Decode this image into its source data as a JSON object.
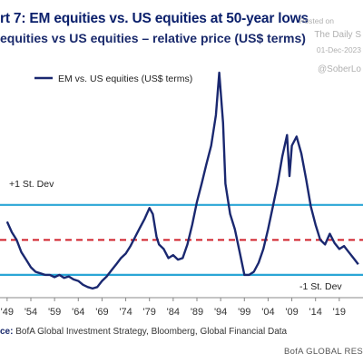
{
  "header": {
    "title": "rt 7: EM equities vs. US equities at 50-year lows",
    "subtitle": "equities vs US equities – relative price (US$ terms)"
  },
  "watermark": {
    "posted": "Posted on",
    "daily": "The Daily S",
    "date": "01-Dec-2023",
    "handle": "@SoberLo"
  },
  "footer": {
    "source_label": "ce:",
    "source_text": " BofA Global Investment Strategy, Bloomberg, Global Financial Data",
    "logo": "BofA GLOBAL RES"
  },
  "colors": {
    "line": "#1a2870",
    "band": "#2aa6d6",
    "mean": "#d0202a"
  },
  "chart_data": {
    "type": "line",
    "series": [
      {
        "name": "EM vs. US equities (US$ terms)",
        "points": [
          [
            1949,
            100
          ],
          [
            1950,
            86
          ],
          [
            1951,
            76
          ],
          [
            1952,
            60
          ],
          [
            1953,
            50
          ],
          [
            1954,
            40
          ],
          [
            1955,
            34
          ],
          [
            1956,
            32
          ],
          [
            1957,
            30
          ],
          [
            1958,
            30
          ],
          [
            1959,
            27
          ],
          [
            1960,
            30
          ],
          [
            1961,
            26
          ],
          [
            1962,
            28
          ],
          [
            1963,
            24
          ],
          [
            1964,
            22
          ],
          [
            1965,
            17
          ],
          [
            1966,
            14
          ],
          [
            1967,
            12
          ],
          [
            1968,
            14
          ],
          [
            1969,
            22
          ],
          [
            1970,
            28
          ],
          [
            1971,
            36
          ],
          [
            1972,
            44
          ],
          [
            1973,
            52
          ],
          [
            1974,
            58
          ],
          [
            1975,
            68
          ],
          [
            1976,
            80
          ],
          [
            1977,
            92
          ],
          [
            1978,
            104
          ],
          [
            1979,
            118
          ],
          [
            1979.7,
            110
          ],
          [
            1980.5,
            80
          ],
          [
            1981,
            70
          ],
          [
            1982,
            64
          ],
          [
            1983,
            52
          ],
          [
            1984,
            56
          ],
          [
            1985,
            50
          ],
          [
            1986,
            52
          ],
          [
            1987,
            70
          ],
          [
            1988,
            96
          ],
          [
            1989,
            126
          ],
          [
            1990,
            150
          ],
          [
            1991,
            176
          ],
          [
            1992,
            200
          ],
          [
            1993,
            240
          ],
          [
            1993.7,
            296
          ],
          [
            1994.5,
            230
          ],
          [
            1995,
            150
          ],
          [
            1996,
            110
          ],
          [
            1997,
            90
          ],
          [
            1998,
            60
          ],
          [
            1999,
            30
          ],
          [
            2000,
            30
          ],
          [
            2001,
            34
          ],
          [
            2002,
            46
          ],
          [
            2003,
            64
          ],
          [
            2004,
            90
          ],
          [
            2005,
            120
          ],
          [
            2006,
            150
          ],
          [
            2007,
            186
          ],
          [
            2008,
            214
          ],
          [
            2008.5,
            160
          ],
          [
            2009,
            200
          ],
          [
            2010,
            212
          ],
          [
            2011,
            190
          ],
          [
            2012,
            156
          ],
          [
            2013,
            120
          ],
          [
            2014,
            96
          ],
          [
            2015,
            76
          ],
          [
            2016,
            70
          ],
          [
            2017,
            84
          ],
          [
            2018,
            72
          ],
          [
            2019,
            64
          ],
          [
            2020,
            68
          ],
          [
            2021,
            60
          ],
          [
            2022,
            52
          ],
          [
            2023,
            44
          ]
        ]
      }
    ],
    "reference_lines": [
      {
        "name": "+1 St. Dev",
        "value": 122
      },
      {
        "name": "mean",
        "value": 76
      },
      {
        "name": "-1 St. Dev",
        "value": 30
      }
    ],
    "x_ticks": [
      "'49",
      "'54",
      "'59",
      "'64",
      "'69",
      "'74",
      "'79",
      "'84",
      "'89",
      "'94",
      "'99",
      "'04",
      "'09",
      "'14",
      "'19"
    ],
    "x_tick_values": [
      1949,
      1954,
      1959,
      1964,
      1969,
      1974,
      1979,
      1984,
      1989,
      1994,
      1999,
      2004,
      2009,
      2014,
      2019
    ],
    "xlim": [
      1947.5,
      2024
    ],
    "ylim": [
      0,
      320
    ],
    "legend_position": "top-left"
  }
}
